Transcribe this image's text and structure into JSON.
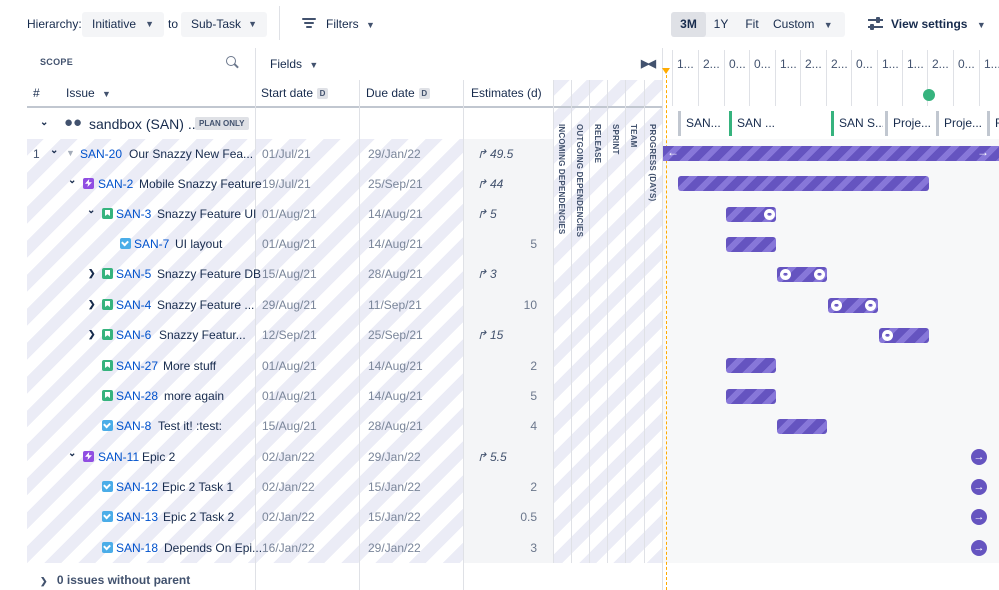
{
  "toolbar": {
    "hierarchy_label": "Hierarchy:",
    "hierarchy_from": "Initiative",
    "to_label": "to",
    "hierarchy_to": "Sub-Task",
    "filters_label": "Filters",
    "time_buttons": [
      "3M",
      "1Y",
      "Fit",
      "Custom"
    ],
    "active_time": "3M",
    "view_settings_label": "View settings"
  },
  "header": {
    "scope_label": "SCOPE",
    "fields_label": "Fields",
    "col_num": "#",
    "col_issue": "Issue",
    "col_start": "Start date",
    "col_due": "Due date",
    "col_est": "Estimates (d)",
    "d_badge": "D",
    "vertical_columns": [
      "INCOMING DEPENDENCIES",
      "OUTGOING DEPENDENCIES",
      "RELEASE",
      "SPRINT",
      "TEAM",
      "PROGRESS (DAYS)"
    ]
  },
  "timeline": {
    "ticks": [
      "1...",
      "2...",
      "0...",
      "0...",
      "1...",
      "2...",
      "2...",
      "0...",
      "1...",
      "1...",
      "2...",
      "0...",
      "1..."
    ],
    "releases": [
      {
        "label": "SAN...",
        "green": false
      },
      {
        "label": "SAN ...",
        "green": true
      },
      {
        "label": "SAN S...",
        "green": true
      },
      {
        "label": "Proje...",
        "green": false
      },
      {
        "label": "Proje...",
        "green": false
      },
      {
        "label": "R",
        "green": false
      }
    ]
  },
  "group": {
    "title": "sandbox (SAN) ...",
    "badge": "PLAN ONLY"
  },
  "rows": [
    {
      "num": "1",
      "key": "SAN-20",
      "title": "Our Snazzy New Fea...",
      "start": "01/Jul/21",
      "due": "29/Jan/22",
      "est": "49.5",
      "rollup": true
    },
    {
      "num": "",
      "key": "SAN-2",
      "title": "Mobile Snazzy Feature",
      "start": "19/Jul/21",
      "due": "25/Sep/21",
      "est": "44",
      "rollup": true
    },
    {
      "num": "",
      "key": "SAN-3",
      "title": "Snazzy Feature UI",
      "start": "01/Aug/21",
      "due": "14/Aug/21",
      "est": "5",
      "rollup": true
    },
    {
      "num": "",
      "key": "SAN-7",
      "title": "UI layout",
      "start": "01/Aug/21",
      "due": "14/Aug/21",
      "est": "5",
      "rollup": false
    },
    {
      "num": "",
      "key": "SAN-5",
      "title": "Snazzy Feature DB",
      "start": "15/Aug/21",
      "due": "28/Aug/21",
      "est": "3",
      "rollup": true
    },
    {
      "num": "",
      "key": "SAN-4",
      "title": "Snazzy Feature ...",
      "start": "29/Aug/21",
      "due": "11/Sep/21",
      "est": "10",
      "rollup": false
    },
    {
      "num": "",
      "key": "SAN-6",
      "title": "Snazzy Featur...",
      "start": "12/Sep/21",
      "due": "25/Sep/21",
      "est": "15",
      "rollup": true
    },
    {
      "num": "",
      "key": "SAN-27",
      "title": "More stuff",
      "start": "01/Aug/21",
      "due": "14/Aug/21",
      "est": "2",
      "rollup": false
    },
    {
      "num": "",
      "key": "SAN-28",
      "title": "more again",
      "start": "01/Aug/21",
      "due": "14/Aug/21",
      "est": "5",
      "rollup": false
    },
    {
      "num": "",
      "key": "SAN-8",
      "title": "Test it! :test:",
      "start": "15/Aug/21",
      "due": "28/Aug/21",
      "est": "4",
      "rollup": false
    },
    {
      "num": "",
      "key": "SAN-11",
      "title": "Epic 2",
      "start": "02/Jan/22",
      "due": "29/Jan/22",
      "est": "5.5",
      "rollup": true
    },
    {
      "num": "",
      "key": "SAN-12",
      "title": "Epic 2 Task 1",
      "start": "02/Jan/22",
      "due": "15/Jan/22",
      "est": "2",
      "rollup": false
    },
    {
      "num": "",
      "key": "SAN-13",
      "title": "Epic 2 Task 2",
      "start": "02/Jan/22",
      "due": "15/Jan/22",
      "est": "0.5",
      "rollup": false
    },
    {
      "num": "",
      "key": "SAN-18",
      "title": "Depends On Epi...",
      "start": "16/Jan/22",
      "due": "29/Jan/22",
      "est": "3",
      "rollup": false
    }
  ],
  "footer": {
    "label": "0 issues without parent"
  },
  "colors": {
    "accent": "#6554c0",
    "link": "#0052cc",
    "today": "#ffab00",
    "release_green": "#36b37e"
  }
}
